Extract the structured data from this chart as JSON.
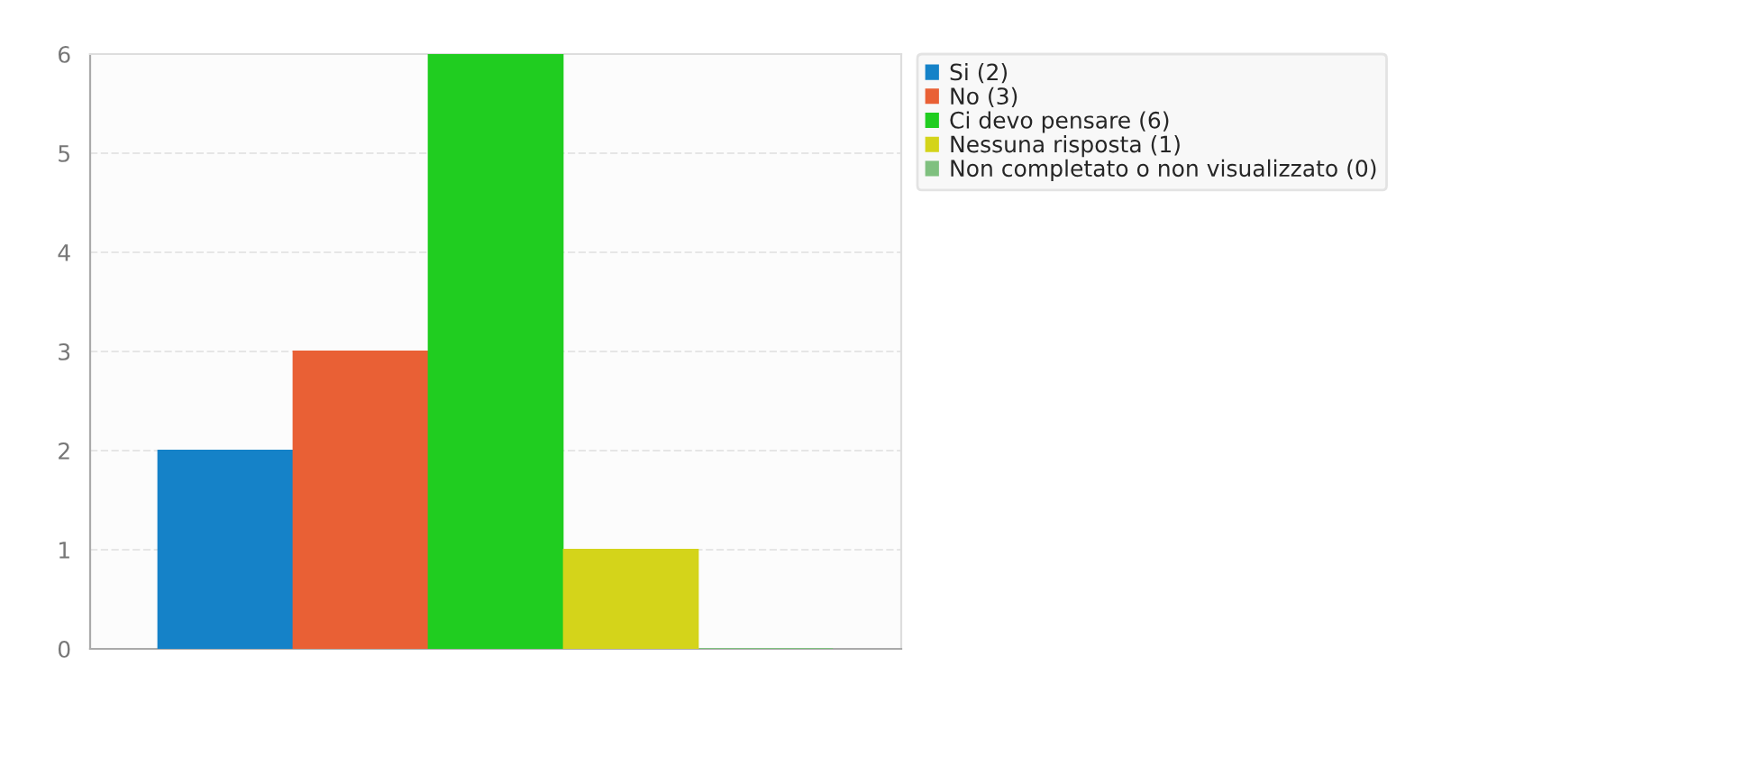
{
  "chart_data": {
    "type": "bar",
    "categories": [
      null
    ],
    "series": [
      {
        "name": "Si (2)",
        "color": "#1582c8",
        "values": [
          2
        ]
      },
      {
        "name": "No (3)",
        "color": "#e96035",
        "values": [
          3
        ]
      },
      {
        "name": "Ci devo pensare (6)",
        "color": "#20cd20",
        "values": [
          6
        ]
      },
      {
        "name": "Nessuna risposta (1)",
        "color": "#d4d41a",
        "values": [
          1
        ]
      },
      {
        "name": "Non completato o non visualizzato (0)",
        "color": "#7fc07f",
        "values": [
          0
        ]
      }
    ],
    "ylim": [
      0,
      6
    ],
    "yticks": [
      0,
      1,
      2,
      3,
      4,
      5,
      6
    ],
    "grid": "y",
    "legend": "top right"
  }
}
